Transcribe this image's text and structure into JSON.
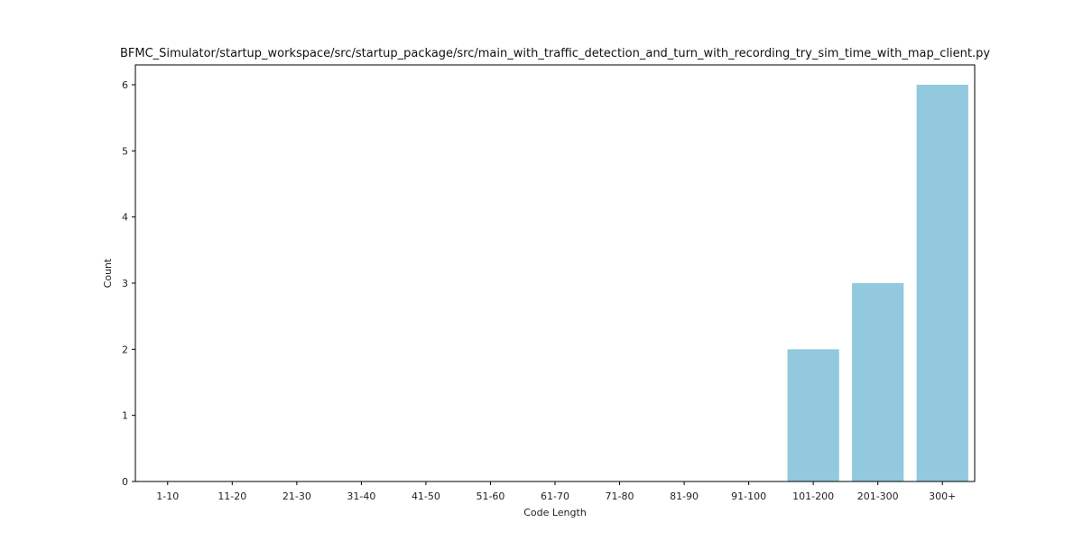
{
  "chart_data": {
    "type": "bar",
    "title": "BFMC_Simulator/startup_workspace/src/startup_package/src/main_with_traffic_detection_and_turn_with_recording_try_sim_time_with_map_client.py",
    "xlabel": "Code Length",
    "ylabel": "Count",
    "categories": [
      "1-10",
      "11-20",
      "21-30",
      "31-40",
      "41-50",
      "51-60",
      "61-70",
      "71-80",
      "81-90",
      "91-100",
      "101-200",
      "201-300",
      "300+"
    ],
    "values": [
      0,
      0,
      0,
      0,
      0,
      0,
      0,
      0,
      0,
      0,
      2,
      3,
      6
    ],
    "ylim": [
      0,
      6.3
    ],
    "yticks": [
      0,
      1,
      2,
      3,
      4,
      5,
      6
    ],
    "bar_color": "#92c9de",
    "grid": false,
    "legend": "none"
  }
}
